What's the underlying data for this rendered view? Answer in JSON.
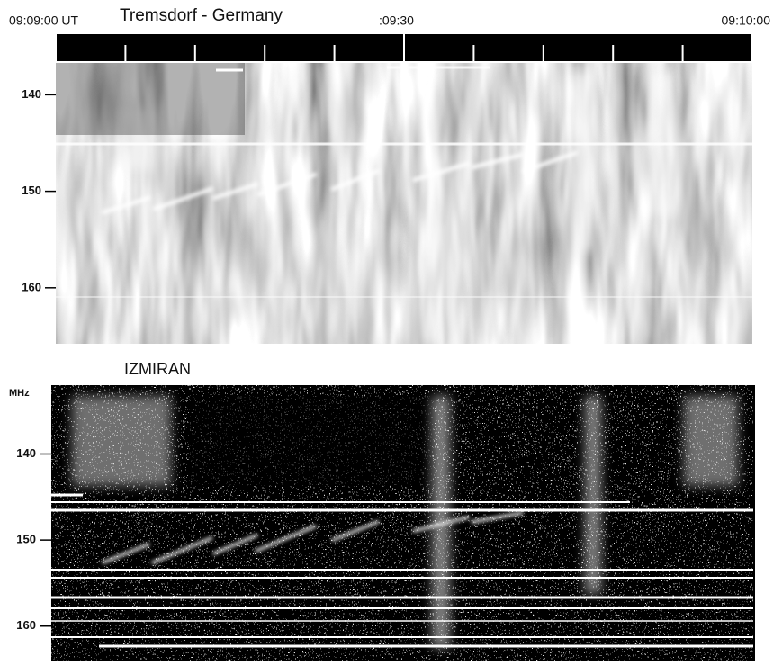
{
  "chart_data": [
    {
      "type": "spectrogram",
      "title": "Tremsdorf - Germany",
      "xlim": [
        0,
        60
      ],
      "xticks": [
        {
          "value": 0,
          "label": "09:09:00 UT"
        },
        {
          "value": 30,
          "label": ":09:30"
        },
        {
          "value": 60,
          "label": "09:10:00"
        }
      ],
      "minor_xticks": [
        6,
        12,
        18,
        24,
        36,
        42,
        48,
        54
      ],
      "ylim": [
        136.7,
        165.8
      ],
      "yticks": [
        140,
        150,
        160
      ]
    },
    {
      "type": "spectrogram",
      "title": "IZMIRAN",
      "y_label": "MHz",
      "ylim": [
        132,
        164
      ],
      "yticks": [
        140,
        150,
        160
      ]
    }
  ]
}
